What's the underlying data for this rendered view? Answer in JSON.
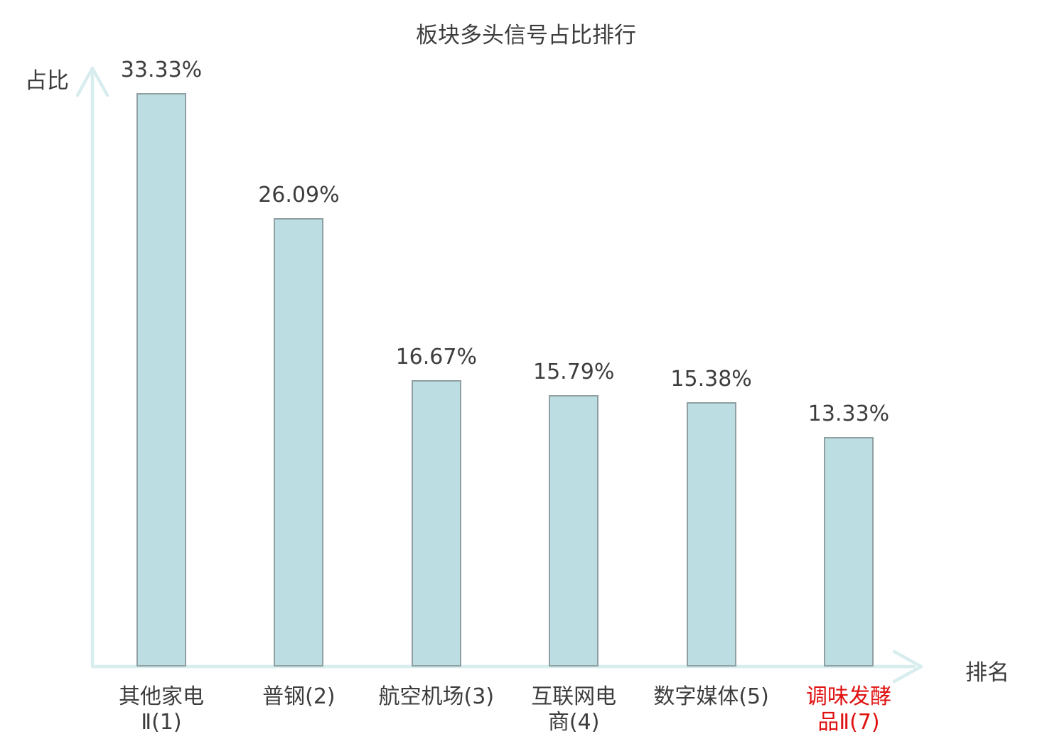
{
  "chart_data": {
    "type": "bar",
    "title": "板块多头信号占比排行",
    "ylabel": "占比",
    "xlabel": "排名",
    "categories": [
      "其他家电Ⅱ(1)",
      "普钢(2)",
      "航空机场(3)",
      "互联网电商(4)",
      "数字媒体(5)",
      "调味发酵品Ⅱ(7)"
    ],
    "category_lines": [
      [
        "其他家电",
        "Ⅱ(1)"
      ],
      [
        "普钢(2)"
      ],
      [
        "航空机场(3)"
      ],
      [
        "互联网电",
        "商(4)"
      ],
      [
        "数字媒体(5)"
      ],
      [
        "调味发酵",
        "品Ⅱ(7)"
      ]
    ],
    "values": [
      33.33,
      26.09,
      16.67,
      15.79,
      15.38,
      13.33
    ],
    "value_labels": [
      "33.33%",
      "26.09%",
      "16.67%",
      "15.79%",
      "15.38%",
      "13.33%"
    ],
    "highlighted_index": 5,
    "ylim": [
      0,
      34.5
    ],
    "grid": false,
    "legend_position": "none",
    "colors": {
      "bar_fill": "#bcdee3",
      "bar_border": "#8f9fa2",
      "axis": "#d8edee",
      "text": "#3d3d3d",
      "highlight": "#e01111"
    }
  }
}
